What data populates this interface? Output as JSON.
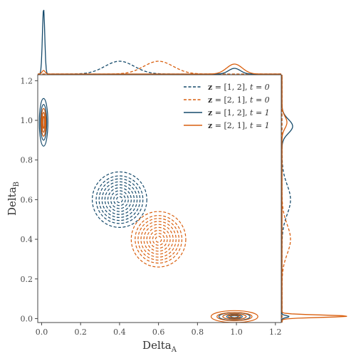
{
  "chart_data": {
    "type": "contour",
    "xlabel": {
      "base": "Delta",
      "sub": "A"
    },
    "ylabel": {
      "base": "Delta",
      "sub": "B"
    },
    "xlim": [
      -0.02,
      1.23
    ],
    "ylim": [
      -0.02,
      1.23
    ],
    "xticks": [
      "0.0",
      "0.2",
      "0.4",
      "0.6",
      "0.8",
      "1.0",
      "1.2"
    ],
    "yticks": [
      "0.0",
      "0.2",
      "0.4",
      "0.6",
      "0.8",
      "1.0",
      "1.2"
    ],
    "tick_values": [
      0.0,
      0.2,
      0.4,
      0.6,
      0.8,
      1.0,
      1.2
    ],
    "grid": false,
    "marginal_plots": [
      "top",
      "right"
    ],
    "legend_position": "top-right",
    "colors": {
      "blue": "#154a6b",
      "orange": "#d95f0e"
    },
    "series": [
      {
        "name": "z = [1, 2], t = 0",
        "legend_bold": "z",
        "legend_rest": " = [1, 2], ",
        "legend_t": "t = 0",
        "color": "#154a6b",
        "style": "dashed",
        "center": [
          0.4,
          0.6
        ],
        "contour_radii": [
          0.015,
          0.03,
          0.045,
          0.06,
          0.075,
          0.09,
          0.105,
          0.12,
          0.14
        ],
        "marginal_x_center": 0.4,
        "marginal_y_center": 0.6
      },
      {
        "name": "z = [2, 1], t = 0",
        "legend_bold": "z",
        "legend_rest": " = [2, 1], ",
        "legend_t": "t = 0",
        "color": "#d95f0e",
        "style": "dashed",
        "center": [
          0.6,
          0.4
        ],
        "contour_radii": [
          0.015,
          0.03,
          0.045,
          0.06,
          0.075,
          0.09,
          0.105,
          0.12,
          0.14
        ],
        "marginal_x_center": 0.6,
        "marginal_y_center": 0.4
      },
      {
        "name": "z = [1, 2], t = 1",
        "legend_bold": "z",
        "legend_rest": " = [1, 2], ",
        "legend_t": "t = 1",
        "color": "#154a6b",
        "style": "solid",
        "clusters": [
          {
            "center": [
              0.01,
              0.99
            ],
            "rx": [
              0.004,
              0.008,
              0.012,
              0.016,
              0.022
            ],
            "ry": [
              0.03,
              0.05,
              0.07,
              0.09,
              0.12
            ]
          },
          {
            "center": [
              0.99,
              0.01
            ],
            "rx": [
              0.02,
              0.04,
              0.06,
              0.08
            ],
            "ry": [
              0.005,
              0.01,
              0.015,
              0.02
            ]
          }
        ]
      },
      {
        "name": "z = [2, 1], t = 1",
        "legend_bold": "z",
        "legend_rest": " = [2, 1], ",
        "legend_t": "t = 1",
        "color": "#d95f0e",
        "style": "solid",
        "clusters": [
          {
            "center": [
              0.01,
              0.99
            ],
            "rx": [
              0.004,
              0.008,
              0.012
            ],
            "ry": [
              0.03,
              0.05,
              0.07
            ]
          },
          {
            "center": [
              0.99,
              0.01
            ],
            "rx": [
              0.03,
              0.06,
              0.09,
              0.12
            ],
            "ry": [
              0.007,
              0.014,
              0.021,
              0.03
            ]
          }
        ]
      }
    ]
  }
}
